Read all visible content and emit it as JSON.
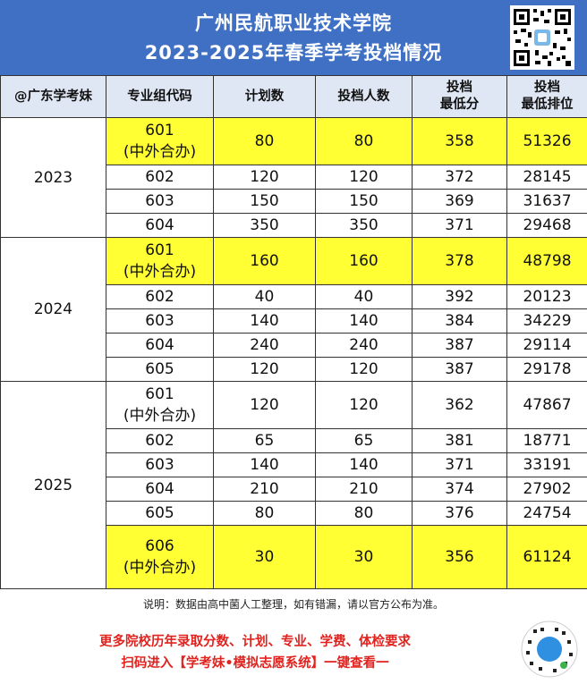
{
  "header": {
    "title_line1": "广州民航职业技术学院",
    "title_line2": "2023-2025年春季学考投档情况",
    "qr_icon": "qr-code-icon"
  },
  "table": {
    "columns": [
      "@广东学考妹",
      "专业组代码",
      "计划数",
      "投档人数",
      "投档\n最低分",
      "投档\n最低排位"
    ],
    "years": [
      "2023",
      "2024",
      "2025"
    ],
    "rows": [
      {
        "code": "601",
        "note": "(中外合办)",
        "plan": "80",
        "admitted": "80",
        "min_score": "358",
        "min_rank": "51326"
      },
      {
        "code": "602",
        "plan": "120",
        "admitted": "120",
        "min_score": "372",
        "min_rank": "28145"
      },
      {
        "code": "603",
        "plan": "150",
        "admitted": "150",
        "min_score": "369",
        "min_rank": "31637"
      },
      {
        "code": "604",
        "plan": "350",
        "admitted": "350",
        "min_score": "371",
        "min_rank": "29468"
      },
      {
        "code": "601",
        "note": "(中外合办)",
        "plan": "160",
        "admitted": "160",
        "min_score": "378",
        "min_rank": "48798"
      },
      {
        "code": "602",
        "plan": "40",
        "admitted": "40",
        "min_score": "392",
        "min_rank": "20123"
      },
      {
        "code": "603",
        "plan": "140",
        "admitted": "140",
        "min_score": "384",
        "min_rank": "34229"
      },
      {
        "code": "604",
        "plan": "240",
        "admitted": "240",
        "min_score": "387",
        "min_rank": "29114"
      },
      {
        "code": "605",
        "plan": "120",
        "admitted": "120",
        "min_score": "387",
        "min_rank": "29178"
      },
      {
        "code": "601",
        "note": "(中外合办)",
        "plan": "120",
        "admitted": "120",
        "min_score": "362",
        "min_rank": "47867"
      },
      {
        "code": "602",
        "plan": "65",
        "admitted": "65",
        "min_score": "381",
        "min_rank": "18771"
      },
      {
        "code": "603",
        "plan": "140",
        "admitted": "140",
        "min_score": "371",
        "min_rank": "33191"
      },
      {
        "code": "604",
        "plan": "210",
        "admitted": "210",
        "min_score": "374",
        "min_rank": "27902"
      },
      {
        "code": "605",
        "plan": "80",
        "admitted": "80",
        "min_score": "376",
        "min_rank": "24754"
      },
      {
        "code": "606",
        "note": "(中外合办)",
        "plan": "30",
        "admitted": "30",
        "min_score": "356",
        "min_rank": "61124"
      }
    ],
    "highlight_color": "#ffff33"
  },
  "note": "说明：数据由高中菌人工整理，如有错漏，请以官方公布为准。",
  "footer": {
    "promo_line1": "更多院校历年录取分数、计划、专业、学费、体检要求",
    "promo_line2": "扫码进入【学考妹•模拟志愿系统】一键查看一",
    "mini_program_icon": "mini-program-qr-icon"
  },
  "colors": {
    "header_bg": "#3f70c4",
    "promo_text": "#e0231f"
  }
}
